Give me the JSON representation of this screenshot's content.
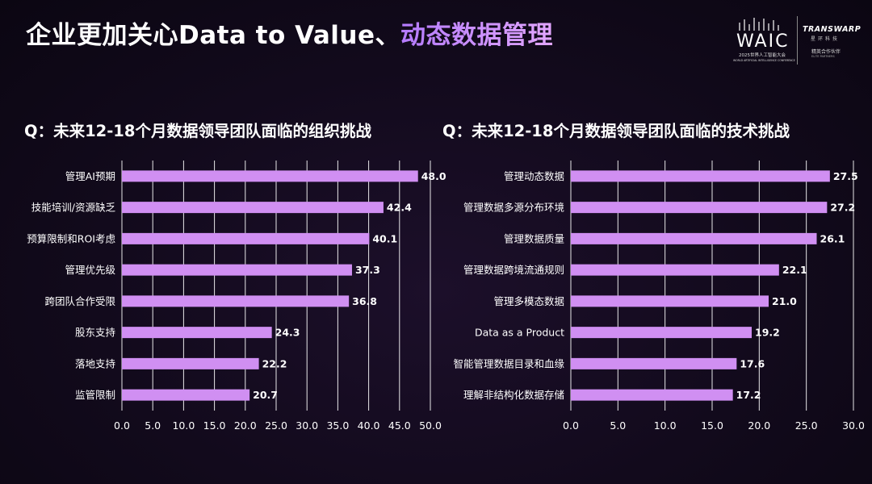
{
  "slide": {
    "title_main": "企业更加关心Data to Value、",
    "title_accent": "动态数据管理"
  },
  "logos": {
    "waic": "WAIC",
    "waic_sub": "2025世界人工智能大会",
    "waic_en": "WORLD ARTIFICIAL INTELLIGENCE CONFERENCE",
    "transwarp": "TRANSWARP",
    "transwarp_cn": "星环科技",
    "partner": "精英合作伙伴",
    "partner_en": "ELITE PARTNERS"
  },
  "colors": {
    "bar": "#d08ff2",
    "accent_start": "#b57bff",
    "accent_end": "#e2a6ff"
  },
  "chart_data": [
    {
      "type": "bar",
      "orientation": "horizontal",
      "title": "Q：未来12-18个月数据领导团队面临的组织挑战",
      "categories": [
        "管理AI预期",
        "技能培训/资源缺乏",
        "预算限制和ROI考虑",
        "管理优先级",
        "跨团队合作受限",
        "股东支持",
        "落地支持",
        "监管限制"
      ],
      "values": [
        48.0,
        42.4,
        40.1,
        37.3,
        36.8,
        24.3,
        22.2,
        20.7
      ],
      "value_labels": [
        "48.0",
        "42.4",
        "40.1",
        "37.3",
        "36.8",
        "24.3",
        "22.2",
        "20.7"
      ],
      "xlim": [
        0,
        50
      ],
      "ticks": [
        "0.0",
        "5.0",
        "10.0",
        "15.0",
        "20.0",
        "25.0",
        "30.0",
        "35.0",
        "40.0",
        "45.0",
        "50.0"
      ],
      "grid": true
    },
    {
      "type": "bar",
      "orientation": "horizontal",
      "title": "Q：未来12-18个月数据领导团队面临的技术挑战",
      "categories": [
        "管理动态数据",
        "管理数据多源分布环境",
        "管理数据质量",
        "管理数据跨境流通规则",
        "管理多模态数据",
        "Data as a Product",
        "智能管理数据目录和血缘",
        "理解非结构化数据存储"
      ],
      "values": [
        27.5,
        27.2,
        26.1,
        22.1,
        21.0,
        19.2,
        17.6,
        17.2
      ],
      "value_labels": [
        "27.5",
        "27.2",
        "26.1",
        "22.1",
        "21.0",
        "19.2",
        "17.6",
        "17.2"
      ],
      "xlim": [
        0,
        30
      ],
      "ticks": [
        "0.0",
        "5.0",
        "10.0",
        "15.0",
        "20.0",
        "25.0",
        "30.0"
      ],
      "grid": true
    }
  ]
}
